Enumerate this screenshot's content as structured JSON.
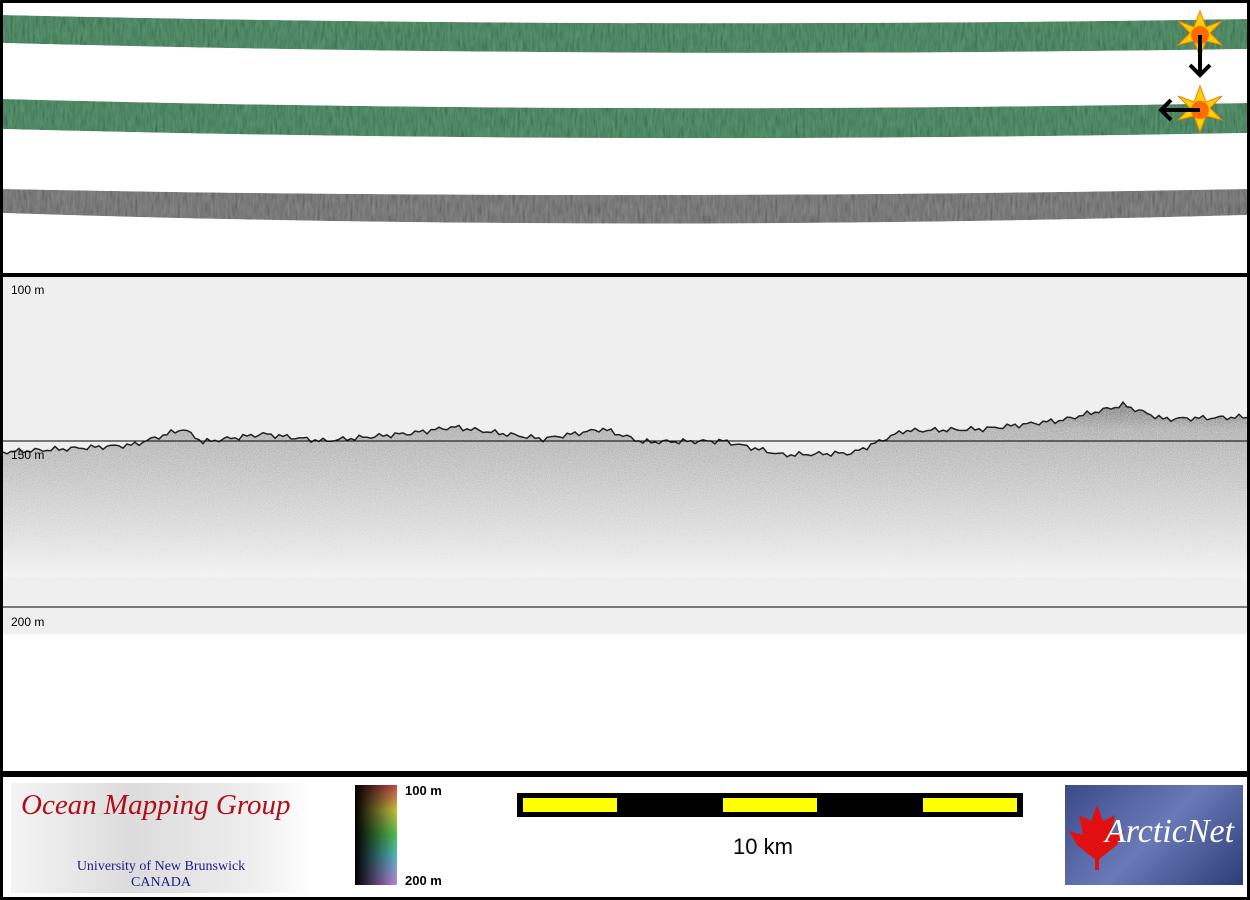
{
  "depth_axis": {
    "top": "100 m",
    "mid": "150 m",
    "bottom": "200 m"
  },
  "colorbar": {
    "top_label": "100 m",
    "bottom_label": "200 m"
  },
  "scale_bar": {
    "label": "10 km",
    "colors": [
      "#ffff00",
      "#000000"
    ]
  },
  "logos": {
    "ocean_mapping": {
      "title": "Ocean Mapping Group",
      "line1": "University of New Brunswick",
      "line2": "CANADA"
    },
    "arcticnet": {
      "title": "ArcticNet"
    }
  },
  "colors": {
    "swath": "#4f8f66",
    "backscatter": "#6a6a6a",
    "echogram_bg": "#efefef",
    "sun": "#ffcc00"
  },
  "icons": [
    "sun-marker-icon",
    "arrow-down-icon",
    "sun-marker-icon",
    "arrow-left-icon"
  ]
}
